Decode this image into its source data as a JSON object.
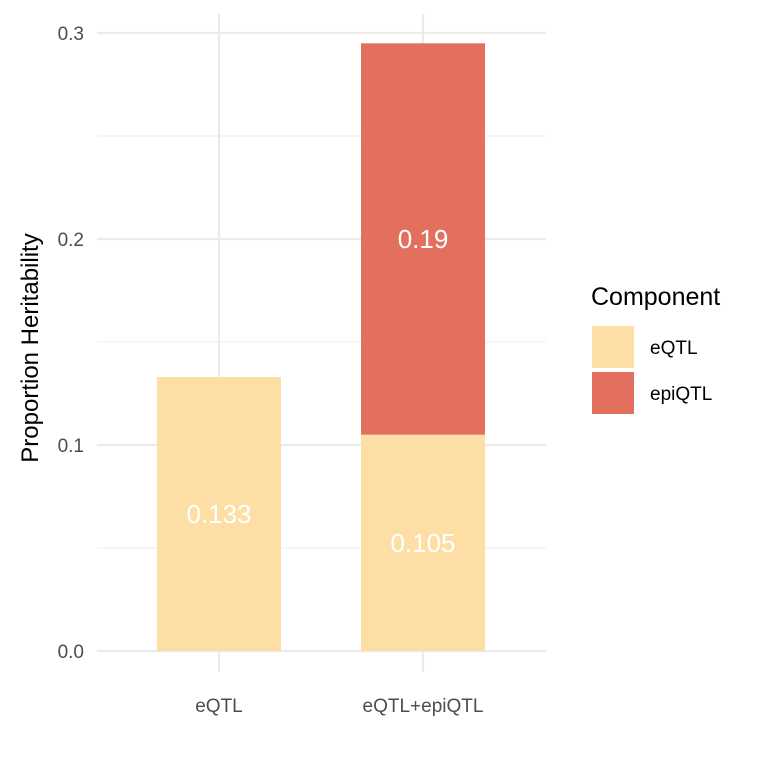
{
  "chart_data": {
    "type": "bar",
    "stacked": true,
    "categories": [
      "eQTL",
      "eQTL+epiQTL"
    ],
    "series": [
      {
        "name": "eQTL",
        "values": [
          0.133,
          0.105
        ],
        "color": "#FDDFA6"
      },
      {
        "name": "epiQTL",
        "values": [
          0,
          0.19
        ],
        "color": "#E36F5E"
      }
    ],
    "data_labels": [
      {
        "category": "eQTL",
        "series": "eQTL",
        "text": "0.133"
      },
      {
        "category": "eQTL+epiQTL",
        "series": "eQTL",
        "text": "0.105"
      },
      {
        "category": "eQTL+epiQTL",
        "series": "epiQTL",
        "text": "0.19"
      }
    ],
    "title": "",
    "xlabel": "",
    "ylabel": "Proportion Heritability",
    "ylim": [
      0,
      0.3
    ],
    "yticks": [
      0.0,
      0.1,
      0.2,
      0.3
    ],
    "ytick_labels": [
      "0.0",
      "0.1",
      "0.2",
      "0.3"
    ],
    "grid": true,
    "legend": {
      "title": "Component",
      "position": "right",
      "entries": [
        {
          "label": "eQTL",
          "color": "#FDDFA6"
        },
        {
          "label": "epiQTL",
          "color": "#E36F5E"
        }
      ]
    }
  }
}
